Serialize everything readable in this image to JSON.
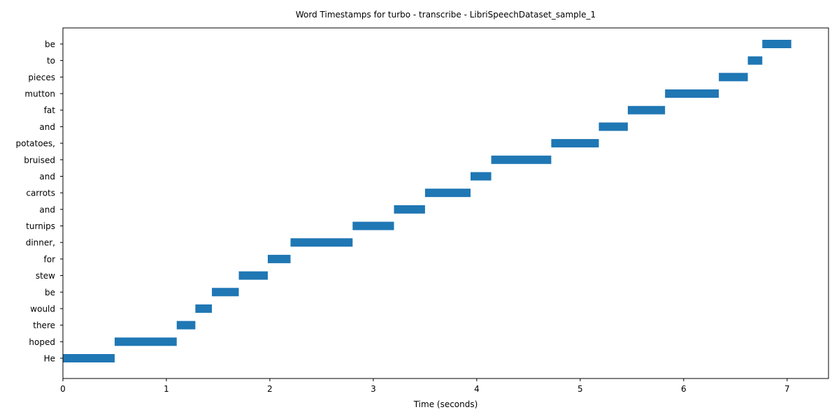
{
  "chart_data": {
    "type": "bar",
    "orientation": "horizontal",
    "title": "Word Timestamps for turbo - transcribe - LibriSpeechDataset_sample_1",
    "xlabel": "Time (seconds)",
    "ylabel": "",
    "xlim": [
      0,
      7.4
    ],
    "xticks": [
      0,
      1,
      2,
      3,
      4,
      5,
      6,
      7
    ],
    "grid": false,
    "bar_color": "#1f77b4",
    "words": [
      {
        "label": " He",
        "start": 0.0,
        "end": 0.5
      },
      {
        "label": " hoped",
        "start": 0.5,
        "end": 1.1
      },
      {
        "label": " there",
        "start": 1.1,
        "end": 1.28
      },
      {
        "label": " would",
        "start": 1.28,
        "end": 1.44
      },
      {
        "label": " be",
        "start": 1.44,
        "end": 1.7
      },
      {
        "label": " stew",
        "start": 1.7,
        "end": 1.98
      },
      {
        "label": " for",
        "start": 1.98,
        "end": 2.2
      },
      {
        "label": " dinner,",
        "start": 2.2,
        "end": 2.8
      },
      {
        "label": " turnips",
        "start": 2.8,
        "end": 3.2
      },
      {
        "label": " and",
        "start": 3.2,
        "end": 3.5
      },
      {
        "label": " carrots",
        "start": 3.5,
        "end": 3.94
      },
      {
        "label": " and",
        "start": 3.94,
        "end": 4.14
      },
      {
        "label": " bruised",
        "start": 4.14,
        "end": 4.72
      },
      {
        "label": " potatoes,",
        "start": 4.72,
        "end": 5.18
      },
      {
        "label": " and",
        "start": 5.18,
        "end": 5.46
      },
      {
        "label": " fat",
        "start": 5.46,
        "end": 5.82
      },
      {
        "label": " mutton",
        "start": 5.82,
        "end": 6.34
      },
      {
        "label": " pieces",
        "start": 6.34,
        "end": 6.62
      },
      {
        "label": " to",
        "start": 6.62,
        "end": 6.76
      },
      {
        "label": " be",
        "start": 6.76,
        "end": 7.04
      }
    ]
  }
}
